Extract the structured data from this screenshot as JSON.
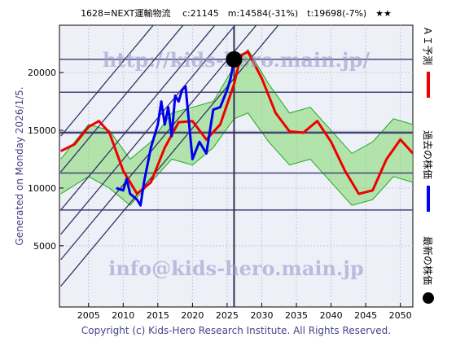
{
  "chart_data": {
    "type": "line",
    "title": "1628=NEXT運輸物流　 c:21145　m:14584(-31%)　t:19698(-7%)　★★",
    "side_label": "Generated on Monday 2026/1/5.",
    "copyright": "Copyright (c) Kids-Hero Research Institute. All Rights Reserved.",
    "watermarks": [
      "http://kids-hero.main.jp/",
      "info@kids-hero.main.jp"
    ],
    "xlim": [
      2000.8,
      2051.8
    ],
    "ylim": [
      -300,
      24100
    ],
    "xticks": [
      2005,
      2010,
      2015,
      2020,
      2025,
      2030,
      2035,
      2040,
      2045,
      2050
    ],
    "yticks": [
      5000,
      10000,
      15000,
      20000
    ],
    "grid": true,
    "band": {
      "color": "#7fd86a",
      "x": [
        2001,
        2005,
        2008,
        2011,
        2014,
        2017,
        2020,
        2023,
        2026,
        2028,
        2031,
        2034,
        2037,
        2040,
        2043,
        2046,
        2049,
        2051.8
      ],
      "upper": [
        12500,
        15500,
        15000,
        12500,
        14000,
        16500,
        17000,
        17500,
        20500,
        22000,
        19000,
        16500,
        17000,
        15000,
        13000,
        14000,
        16000,
        15500
      ],
      "lower": [
        9500,
        11000,
        10000,
        8500,
        10500,
        12500,
        12000,
        13500,
        16000,
        16500,
        14000,
        12000,
        12500,
        10500,
        8500,
        9000,
        11000,
        10500
      ]
    },
    "hlines": [
      21145,
      18300,
      14800,
      11300,
      8100
    ],
    "vline": 2026,
    "channels": [
      {
        "x": [
          2001,
          2040
        ],
        "values": [
          1500,
          29580
        ]
      },
      {
        "x": [
          2001,
          2040
        ],
        "values": [
          3800,
          31880
        ]
      },
      {
        "x": [
          2001,
          2040
        ],
        "values": [
          6000,
          34080
        ]
      },
      {
        "x": [
          2001,
          2040
        ],
        "values": [
          8100,
          36180
        ]
      },
      {
        "x": [
          2001,
          2040
        ],
        "values": [
          11400,
          39480
        ]
      },
      {
        "x": [
          2001,
          2040
        ],
        "values": [
          14500,
          42580
        ]
      }
    ],
    "series": [
      {
        "name": "ＡＩ予測",
        "color": "#ee0000",
        "x": [
          2001,
          2003,
          2005,
          2006.5,
          2008,
          2010,
          2012,
          2014,
          2016,
          2018,
          2020,
          2022,
          2024,
          2026,
          2027,
          2028,
          2030,
          2032,
          2034,
          2036,
          2038,
          2040,
          2042,
          2044,
          2046,
          2048,
          2050,
          2051.8
        ],
        "values": [
          13200,
          13800,
          15300,
          15800,
          14800,
          11500,
          9500,
          10500,
          13500,
          15700,
          15800,
          14200,
          15500,
          19000,
          21500,
          21800,
          19500,
          16500,
          14900,
          14800,
          15800,
          14000,
          11500,
          9500,
          9800,
          12500,
          14200,
          13000
        ]
      },
      {
        "name": "過去の株価",
        "color": "#0000ee",
        "x": [
          2009,
          2010,
          2010.5,
          2011,
          2012,
          2012.5,
          2013,
          2014,
          2015,
          2015.5,
          2016,
          2016.5,
          2017,
          2017.5,
          2018,
          2018.5,
          2019,
          2020,
          2021,
          2022,
          2023,
          2024,
          2025,
          2025.5,
          2026
        ],
        "values": [
          10000,
          9800,
          10800,
          9500,
          9000,
          8500,
          10500,
          13500,
          15500,
          17500,
          15500,
          17000,
          14500,
          18000,
          17500,
          18500,
          18800,
          12500,
          14000,
          13000,
          16800,
          17000,
          18500,
          19500,
          21145
        ]
      }
    ],
    "latest": {
      "name": "最新の株価",
      "color": "#000000",
      "x": 2026,
      "value": 21145
    }
  }
}
